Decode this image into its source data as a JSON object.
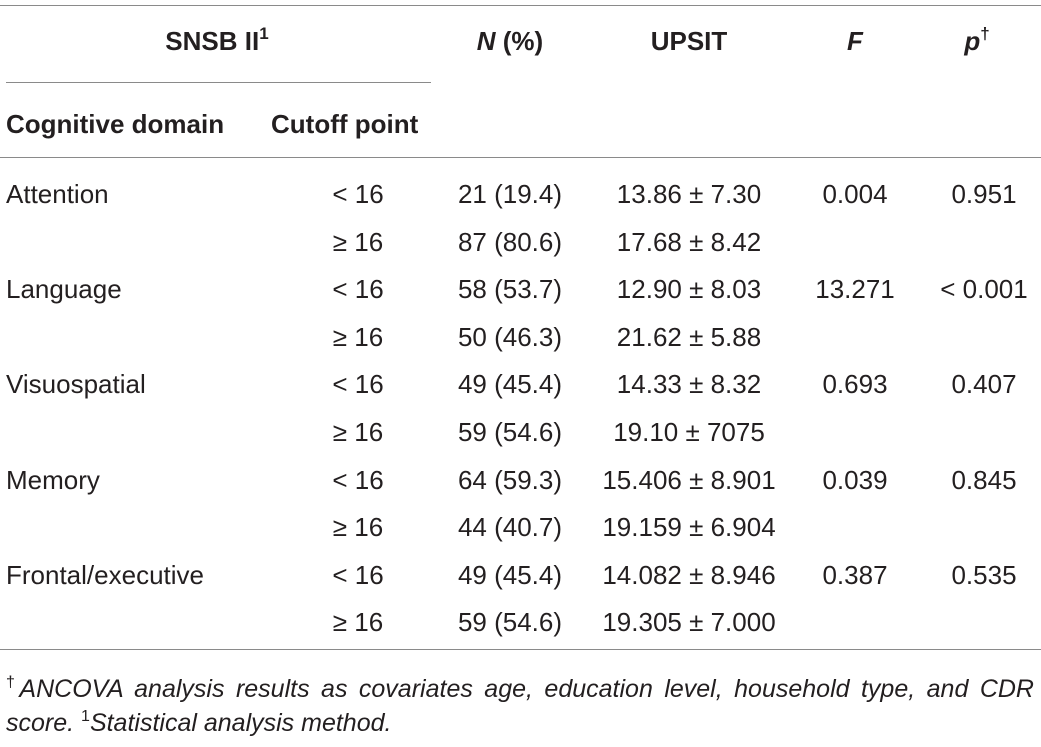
{
  "table": {
    "header": {
      "snsb": "SNSB II",
      "snsb_sup": "1",
      "n_label_italic": "N",
      "n_label_rest": " (%)",
      "upsit": "UPSIT",
      "f": "F",
      "p": "p",
      "p_sup": "†",
      "cognitive_domain": "Cognitive domain",
      "cutoff_point": "Cutoff point"
    },
    "rows": [
      {
        "domain": "Attention",
        "cutoff": "< 16",
        "n": "21 (19.4)",
        "upsit": "13.86 ± 7.30",
        "f": "0.004",
        "p": "0.951"
      },
      {
        "domain": "",
        "cutoff": "≥ 16",
        "n": "87 (80.6)",
        "upsit": "17.68 ± 8.42",
        "f": "",
        "p": ""
      },
      {
        "domain": "Language",
        "cutoff": "< 16",
        "n": "58 (53.7)",
        "upsit": "12.90 ± 8.03",
        "f": "13.271",
        "p": "< 0.001"
      },
      {
        "domain": "",
        "cutoff": "≥ 16",
        "n": "50 (46.3)",
        "upsit": "21.62 ± 5.88",
        "f": "",
        "p": ""
      },
      {
        "domain": "Visuospatial",
        "cutoff": "< 16",
        "n": "49 (45.4)",
        "upsit": "14.33 ± 8.32",
        "f": "0.693",
        "p": "0.407"
      },
      {
        "domain": "",
        "cutoff": "≥ 16",
        "n": "59 (54.6)",
        "upsit": "19.10 ± 7075",
        "f": "",
        "p": ""
      },
      {
        "domain": "Memory",
        "cutoff": "< 16",
        "n": "64 (59.3)",
        "upsit": "15.406 ± 8.901",
        "f": "0.039",
        "p": "0.845"
      },
      {
        "domain": "",
        "cutoff": "≥ 16",
        "n": "44 (40.7)",
        "upsit": "19.159 ± 6.904",
        "f": "",
        "p": ""
      },
      {
        "domain": "Frontal/executive",
        "cutoff": "< 16",
        "n": "49 (45.4)",
        "upsit": "14.082 ± 8.946",
        "f": "0.387",
        "p": "0.535"
      },
      {
        "domain": "",
        "cutoff": "≥ 16",
        "n": "59 (54.6)",
        "upsit": "19.305 ± 7.000",
        "f": "",
        "p": ""
      }
    ]
  },
  "footnote": {
    "dagger": "†",
    "text1": "ANCOVA analysis results as covariates age, education level, household type, and CDR score. ",
    "one": "1",
    "text2": "Statistical analysis method."
  }
}
